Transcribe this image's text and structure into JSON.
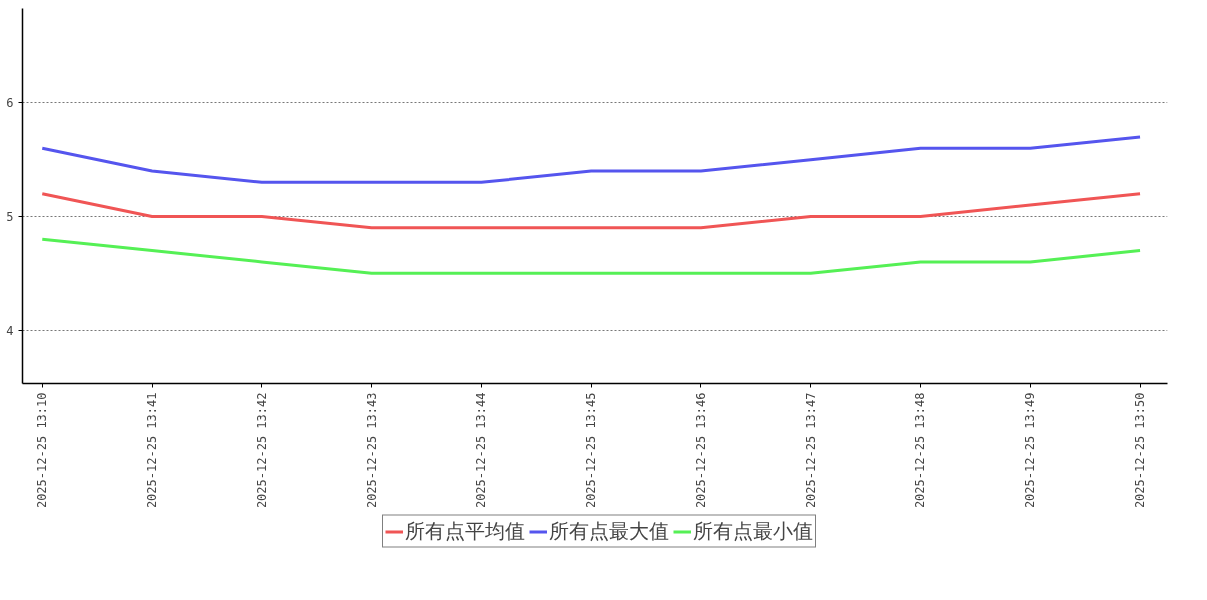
{
  "chart_data": {
    "type": "line",
    "categories": [
      "2025-12-25 13:10",
      "2025-12-25 13:41",
      "2025-12-25 13:42",
      "2025-12-25 13:43",
      "2025-12-25 13:44",
      "2025-12-25 13:45",
      "2025-12-25 13:46",
      "2025-12-25 13:47",
      "2025-12-25 13:48",
      "2025-12-25 13:49",
      "2025-12-25 13:50"
    ],
    "series": [
      {
        "name": "所有点平均值",
        "color": "#f05555",
        "values": [
          5.2,
          5.0,
          5.0,
          4.9,
          4.9,
          4.9,
          4.9,
          5.0,
          5.0,
          5.1,
          5.2
        ]
      },
      {
        "name": "所有点最大值",
        "color": "#5555ee",
        "values": [
          5.6,
          5.4,
          5.3,
          5.3,
          5.3,
          5.4,
          5.4,
          5.5,
          5.6,
          5.6,
          5.7
        ]
      },
      {
        "name": "所有点最小值",
        "color": "#55f055",
        "values": [
          4.8,
          4.7,
          4.6,
          4.5,
          4.5,
          4.5,
          4.5,
          4.5,
          4.6,
          4.6,
          4.7
        ]
      }
    ],
    "ylim": [
      3.53,
      6.83
    ],
    "yticks": [
      4,
      5,
      6
    ],
    "grid": "y",
    "legend": "bottom"
  }
}
